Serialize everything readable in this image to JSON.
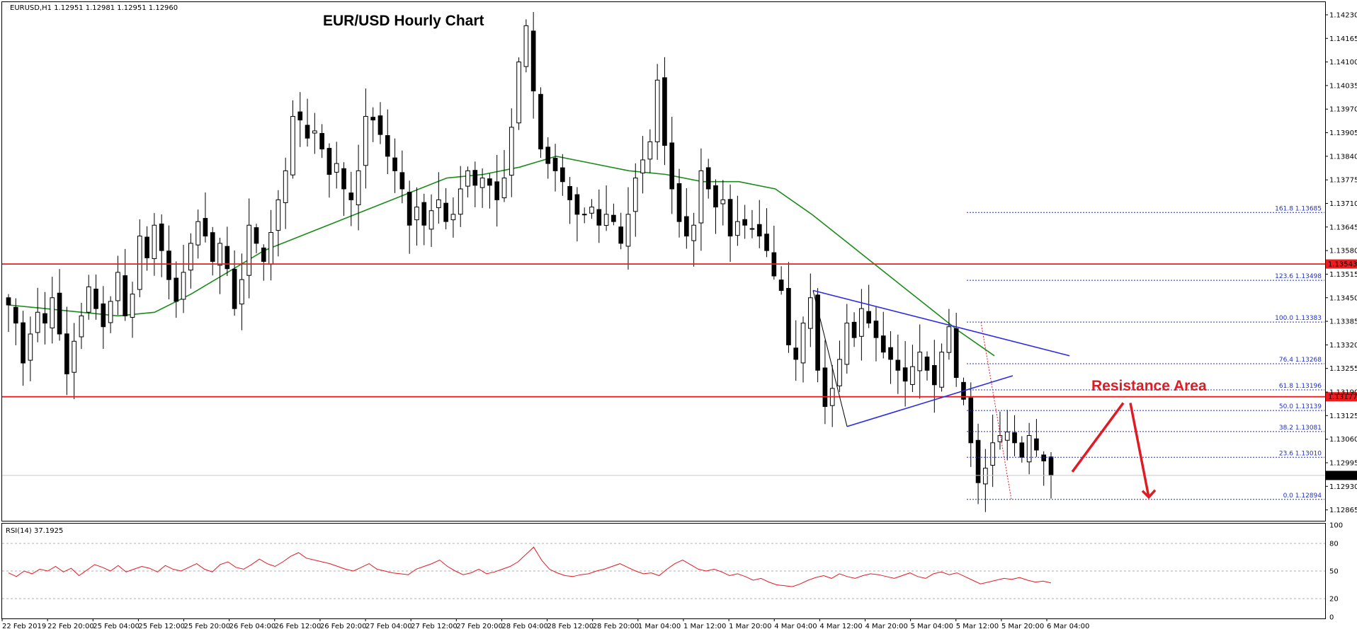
{
  "chart_data": {
    "type": "candlestick",
    "symbol_header": "EURUSD,H1  1.12951 1.12981 1.12951 1.12960",
    "title": "EUR/USD Hourly Chart",
    "ylim": [
      1.12835,
      1.14265
    ],
    "y_ticks": [
      "1.14230",
      "1.14165",
      "1.14100",
      "1.14035",
      "1.13970",
      "1.13905",
      "1.13840",
      "1.13775",
      "1.13710",
      "1.13645",
      "1.13580",
      "1.13515",
      "1.13450",
      "1.13385",
      "1.13320",
      "1.13255",
      "1.13190",
      "1.13125",
      "1.13060",
      "1.12995",
      "1.12930",
      "1.12865"
    ],
    "x_ticks": [
      "22 Feb 2019",
      "22 Feb 20:00",
      "25 Feb 04:00",
      "25 Feb 12:00",
      "25 Feb 20:00",
      "26 Feb 04:00",
      "26 Feb 12:00",
      "26 Feb 20:00",
      "27 Feb 04:00",
      "27 Feb 12:00",
      "27 Feb 20:00",
      "28 Feb 04:00",
      "28 Feb 12:00",
      "28 Feb 20:00",
      "1 Mar 04:00",
      "1 Mar 12:00",
      "1 Mar 20:00",
      "4 Mar 04:00",
      "4 Mar 12:00",
      "4 Mar 20:00",
      "5 Mar 04:00",
      "5 Mar 12:00",
      "5 Mar 20:00",
      "6 Mar 04:00"
    ],
    "price_path": [
      1.1343,
      1.1338,
      1.1327,
      1.1335,
      1.1341,
      1.1338,
      1.1345,
      1.1335,
      1.1324,
      1.1333,
      1.134,
      1.1348,
      1.1342,
      1.1337,
      1.1344,
      1.1352,
      1.134,
      1.1346,
      1.1362,
      1.1356,
      1.1365,
      1.1358,
      1.135,
      1.1344,
      1.1352,
      1.136,
      1.1366,
      1.1362,
      1.1355,
      1.136,
      1.1353,
      1.1342,
      1.135,
      1.1365,
      1.136,
      1.1355,
      1.1363,
      1.1372,
      1.138,
      1.1395,
      1.1394,
      1.1389,
      1.1391,
      1.1386,
      1.1379,
      1.1382,
      1.1375,
      1.1372,
      1.138,
      1.1395,
      1.1394,
      1.139,
      1.1384,
      1.138,
      1.1375,
      1.1365,
      1.137,
      1.1365,
      1.1369,
      1.1372,
      1.1366,
      1.1368,
      1.1375,
      1.138,
      1.1376,
      1.1378,
      1.1376,
      1.1372,
      1.1378,
      1.1392,
      1.141,
      1.142,
      1.1402,
      1.1386,
      1.1382,
      1.138,
      1.1377,
      1.1372,
      1.1368,
      1.1368,
      1.137,
      1.1365,
      1.1368,
      1.1366,
      1.136,
      1.1368,
      1.1378,
      1.1383,
      1.1388,
      1.1405,
      1.1387,
      1.1375,
      1.1366,
      1.1362,
      1.1365,
      1.138,
      1.1375,
      1.137,
      1.1372,
      1.1362,
      1.1366,
      1.1365,
      1.1364,
      1.1362,
      1.1358,
      1.1351,
      1.1347,
      1.1332,
      1.1328,
      1.1338,
      1.1345,
      1.1325,
      1.1315,
      1.132,
      1.1328,
      1.1338,
      1.1334,
      1.1342,
      1.1338,
      1.1334,
      1.133,
      1.1328,
      1.1325,
      1.1322,
      1.1326,
      1.133,
      1.1325,
      1.1321,
      1.133,
      1.1337,
      1.1323,
      1.1317,
      1.1305,
      1.1294,
      1.1298,
      1.1305,
      1.1307,
      1.1308,
      1.1305,
      1.1301,
      1.1307,
      1.1303,
      1.13,
      1.1296
    ],
    "moving_average": {
      "color": "#1a8c1a",
      "values": [
        1.1343,
        1.1342,
        1.1341,
        1.134,
        1.1341,
        1.1346,
        1.1352,
        1.1358,
        1.1362,
        1.1366,
        1.137,
        1.1374,
        1.1378,
        1.1379,
        1.1381,
        1.1384,
        1.1382,
        1.138,
        1.1379,
        1.1377,
        1.1377,
        1.1375,
        1.1368,
        1.136,
        1.1352,
        1.1344,
        1.1336,
        1.1329
      ]
    },
    "horizontal_lines": [
      {
        "label": "1.13543",
        "price": 1.13543,
        "color": "#ee1c1c"
      },
      {
        "label": "1.13177",
        "price": 1.13177,
        "color": "#ee1c1c"
      },
      {
        "label": "1.12960",
        "price": 1.1296,
        "color": "#c8c8c8"
      }
    ],
    "fibonacci": [
      {
        "label": "161.8  1.13685",
        "price": 1.13685
      },
      {
        "label": "123.6  1.13498",
        "price": 1.13498
      },
      {
        "label": "100.0  1.13383",
        "price": 1.13383
      },
      {
        "label": "76.4  1.13268",
        "price": 1.13268
      },
      {
        "label": "61.8  1.13196",
        "price": 1.13196
      },
      {
        "label": "50.0  1.13139",
        "price": 1.13139
      },
      {
        "label": "38.2  1.13081",
        "price": 1.13081
      },
      {
        "label": "23.6  1.13010",
        "price": 1.1301
      },
      {
        "label": "0.0  1.12894",
        "price": 1.12894
      }
    ],
    "triangle": {
      "color": "#2a2ae8",
      "upper": [
        1.1347,
        1.1329
      ],
      "lower": [
        1.13095,
        1.13235
      ],
      "apex_low": 1.13095
    },
    "annotation": "Resistance Area",
    "rsi": {
      "label": "RSI(14) 37.1925",
      "ylim": [
        0,
        100
      ],
      "levels": [
        80,
        50,
        20
      ],
      "y_ticks": [
        "100",
        "80",
        "50",
        "20",
        "0"
      ],
      "color": "#e01b24",
      "values": [
        48,
        44,
        50,
        47,
        52,
        50,
        55,
        49,
        53,
        45,
        51,
        57,
        54,
        50,
        56,
        49,
        52,
        55,
        53,
        49,
        56,
        52,
        50,
        54,
        58,
        52,
        49,
        57,
        60,
        54,
        52,
        57,
        63,
        58,
        55,
        60,
        66,
        70,
        64,
        62,
        60,
        58,
        55,
        52,
        50,
        54,
        58,
        52,
        50,
        48,
        47,
        46,
        52,
        55,
        58,
        62,
        55,
        50,
        46,
        48,
        52,
        47,
        49,
        52,
        55,
        60,
        68,
        76,
        62,
        52,
        48,
        45,
        44,
        46,
        47,
        50,
        52,
        55,
        58,
        54,
        50,
        47,
        48,
        45,
        52,
        58,
        62,
        57,
        52,
        50,
        52,
        49,
        45,
        47,
        44,
        40,
        42,
        38,
        35,
        34,
        33,
        36,
        40,
        43,
        45,
        42,
        47,
        44,
        42,
        45,
        47,
        46,
        44,
        42,
        45,
        48,
        44,
        42,
        47,
        49,
        46,
        48,
        44,
        40,
        36,
        38,
        40,
        42,
        41,
        43,
        40,
        38,
        39,
        37
      ]
    }
  }
}
